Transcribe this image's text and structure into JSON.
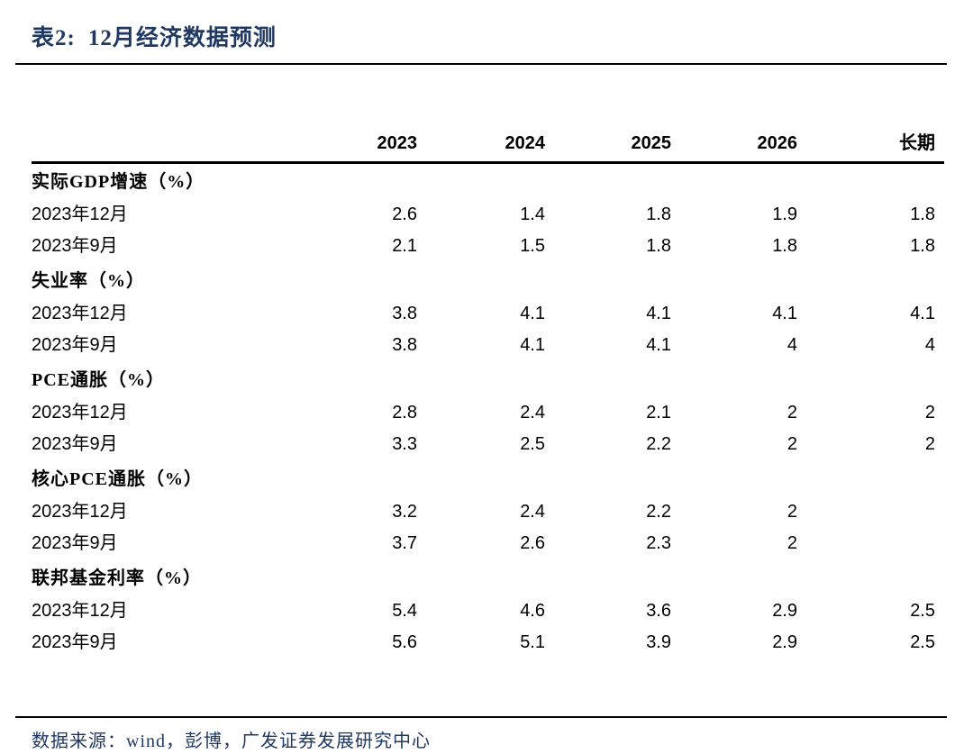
{
  "header": {
    "title_prefix": "表2:",
    "title_text": "12月经济数据预测"
  },
  "footer": {
    "source_text": "数据来源：wind，彭博，广发证券发展研究中心"
  },
  "colors": {
    "accent_navy": "#1F3864",
    "text": "#000000",
    "rule": "#000000",
    "background": "#FFFFFF"
  },
  "chart_data": {
    "type": "table",
    "title": "表2: 12月经济数据预测",
    "columns": [
      "2023",
      "2024",
      "2025",
      "2026",
      "长期"
    ],
    "row_label_header": "",
    "sections": [
      {
        "label": "实际GDP增速（%）",
        "rows": [
          {
            "label": "2023年12月",
            "values": [
              "2.6",
              "1.4",
              "1.8",
              "1.9",
              "1.8"
            ]
          },
          {
            "label": "2023年9月",
            "values": [
              "2.1",
              "1.5",
              "1.8",
              "1.8",
              "1.8"
            ]
          }
        ]
      },
      {
        "label": "失业率（%）",
        "rows": [
          {
            "label": "2023年12月",
            "values": [
              "3.8",
              "4.1",
              "4.1",
              "4.1",
              "4.1"
            ]
          },
          {
            "label": "2023年9月",
            "values": [
              "3.8",
              "4.1",
              "4.1",
              "4",
              "4"
            ]
          }
        ]
      },
      {
        "label": "PCE通胀（%）",
        "rows": [
          {
            "label": "2023年12月",
            "values": [
              "2.8",
              "2.4",
              "2.1",
              "2",
              "2"
            ]
          },
          {
            "label": "2023年9月",
            "values": [
              "3.3",
              "2.5",
              "2.2",
              "2",
              "2"
            ]
          }
        ]
      },
      {
        "label": "核心PCE通胀（%）",
        "rows": [
          {
            "label": "2023年12月",
            "values": [
              "3.2",
              "2.4",
              "2.2",
              "2",
              ""
            ]
          },
          {
            "label": "2023年9月",
            "values": [
              "3.7",
              "2.6",
              "2.3",
              "2",
              ""
            ]
          }
        ]
      },
      {
        "label": "联邦基金利率（%）",
        "rows": [
          {
            "label": "2023年12月",
            "values": [
              "5.4",
              "4.6",
              "3.6",
              "2.9",
              "2.5"
            ]
          },
          {
            "label": "2023年9月",
            "values": [
              "5.6",
              "5.1",
              "3.9",
              "2.9",
              "2.5"
            ]
          }
        ]
      }
    ],
    "source": "数据来源：wind，彭博，广发证券发展研究中心"
  }
}
